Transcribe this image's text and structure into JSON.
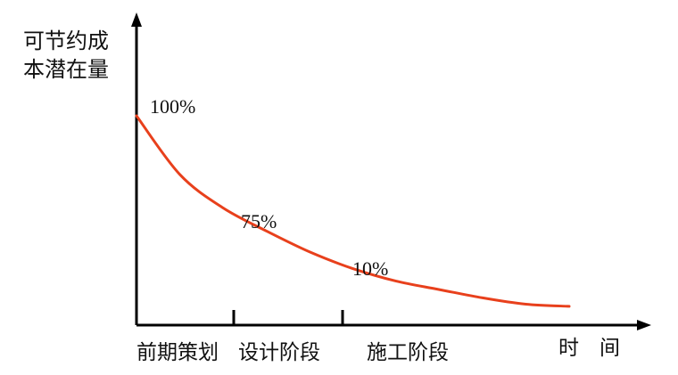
{
  "chart_data": {
    "type": "line",
    "ylabel_lines": [
      "可节约成",
      "本潜在量"
    ],
    "xlabel": "时　间",
    "phases": [
      "前期策划",
      "设计阶段",
      "施工阶段"
    ],
    "annotations": [
      "100%",
      "75%",
      "10%"
    ],
    "series": [
      {
        "color": "#e8401c",
        "points": [
          [
            0,
            100
          ],
          [
            0.5,
            72
          ],
          [
            1.0,
            56
          ],
          [
            1.5,
            45
          ],
          [
            2.0,
            35
          ],
          [
            2.5,
            27
          ],
          [
            3.0,
            21
          ],
          [
            3.5,
            17
          ],
          [
            4.0,
            13
          ],
          [
            4.5,
            10
          ],
          [
            5.0,
            9
          ]
        ]
      }
    ],
    "axis_color": "#000000",
    "grid": false
  }
}
